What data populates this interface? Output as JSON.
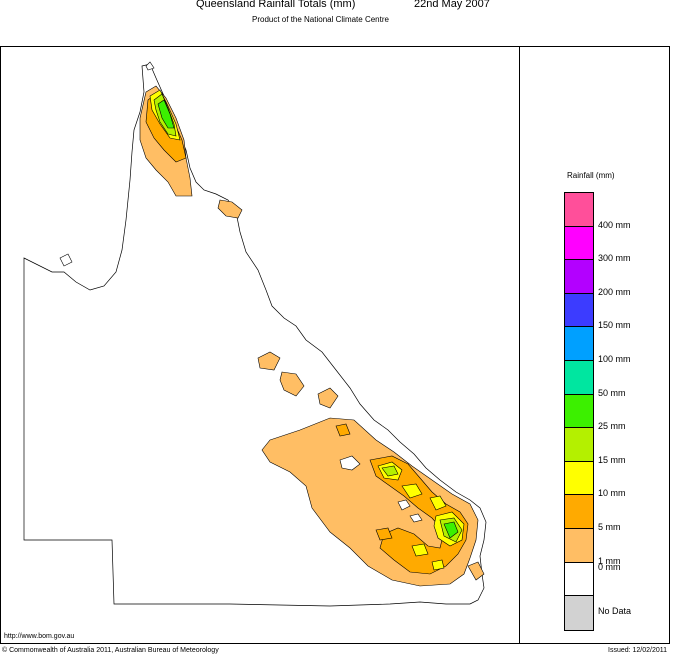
{
  "header": {
    "title": "Queensland Rainfall Totals (mm)",
    "date": "22nd May 2007",
    "subtitle": "Product of the National Climate Centre"
  },
  "legend": {
    "title": "Rainfall (mm)",
    "items": [
      {
        "label": "400 mm",
        "color": "#ff4f9a"
      },
      {
        "label": "300 mm",
        "color": "#ff00ff"
      },
      {
        "label": "200 mm",
        "color": "#b300ff"
      },
      {
        "label": "150 mm",
        "color": "#3c3cff"
      },
      {
        "label": "100 mm",
        "color": "#00a0ff"
      },
      {
        "label": "50 mm",
        "color": "#00e6a0"
      },
      {
        "label": "25 mm",
        "color": "#3cf000"
      },
      {
        "label": "15 mm",
        "color": "#b4f000"
      },
      {
        "label": "10 mm",
        "color": "#ffff00"
      },
      {
        "label": "5 mm",
        "color": "#ffaa00"
      },
      {
        "label": "1 mm",
        "color": "#ffbe64"
      },
      {
        "label": "0 mm",
        "color": "#ffffff"
      },
      {
        "label": "No Data",
        "color": "#d2d2d2"
      }
    ]
  },
  "footer": {
    "url": "http://www.bom.gov.au",
    "copyright": "© Commonwealth of Australia 2011, Australian Bureau of Meteorology",
    "issued": "Issued: 12/02/2011"
  },
  "colors": {
    "outline": "#000000",
    "rain_1": "#ffbe64",
    "rain_5": "#ffaa00",
    "rain_10": "#ffff00",
    "rain_15": "#b4f000",
    "rain_25": "#3cf000"
  }
}
